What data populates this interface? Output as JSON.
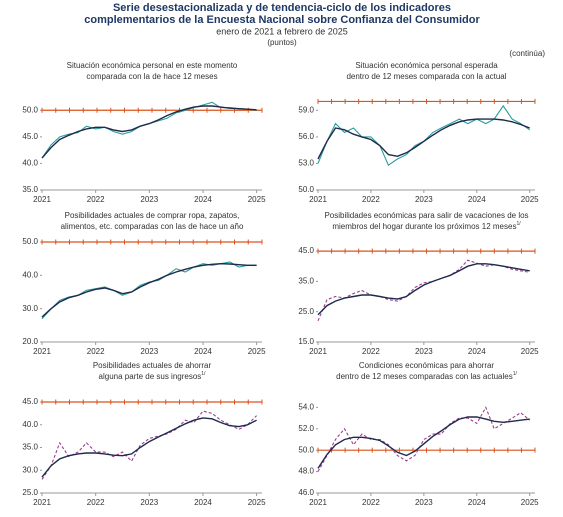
{
  "header": {
    "title_lines": [
      "Serie desestacionalizada y de tendencia-ciclo de los indicadores",
      "complementarios de la Encuesta Nacional sobre Confianza del Consumidor"
    ],
    "subtitle": "enero de 2021 a febrero de 2025",
    "units": "(puntos)",
    "continues": "(continúa)"
  },
  "chart_data": [
    {
      "type": "line",
      "title_lines": [
        "Situación económica personal en este momento",
        "comparada con la de hace 12 meses"
      ],
      "x": [
        2021,
        2021.17,
        2021.33,
        2021.5,
        2021.67,
        2021.83,
        2022,
        2022.17,
        2022.33,
        2022.5,
        2022.67,
        2022.83,
        2023,
        2023.17,
        2023.33,
        2023.5,
        2023.67,
        2023.83,
        2024,
        2024.17,
        2024.33,
        2024.5,
        2024.67,
        2024.83,
        2025
      ],
      "xlim": [
        2021,
        2025.1
      ],
      "xticks": [
        2021,
        2022,
        2023,
        2024,
        2025
      ],
      "ylim": [
        35,
        52.5
      ],
      "yticks": [
        {
          "value": 35,
          "label": "35.0"
        },
        {
          "value": 40,
          "label": "40.0"
        },
        {
          "value": 45,
          "label": "45.0"
        },
        {
          "value": 50,
          "label": "50.0"
        }
      ],
      "reference": 50,
      "reference_color": "#d9541e",
      "series": [
        {
          "color": "#2a9d9a",
          "dash": false,
          "values": [
            41,
            43.5,
            45,
            45.5,
            45.8,
            47,
            46.5,
            46.8,
            46,
            45.5,
            46,
            47,
            47.5,
            48,
            48.5,
            49.5,
            50,
            50.5,
            51,
            51.5,
            50.5,
            50.5,
            50.3,
            50.2,
            50
          ]
        },
        {
          "color": "#1f2a4d",
          "dash": false,
          "values": [
            41,
            43,
            44.5,
            45.3,
            46,
            46.5,
            46.8,
            46.8,
            46.3,
            46,
            46.3,
            47,
            47.5,
            48.2,
            49,
            49.7,
            50.2,
            50.6,
            50.8,
            50.8,
            50.6,
            50.4,
            50.3,
            50.2,
            50.1
          ]
        }
      ]
    },
    {
      "type": "line",
      "title_lines": [
        "Situación económica personal esperada",
        "dentro de 12 meses comparada con la actual"
      ],
      "x": [
        2021,
        2021.17,
        2021.33,
        2021.5,
        2021.67,
        2021.83,
        2022,
        2022.17,
        2022.33,
        2022.5,
        2022.67,
        2022.83,
        2023,
        2023.17,
        2023.33,
        2023.5,
        2023.67,
        2023.83,
        2024,
        2024.17,
        2024.33,
        2024.5,
        2024.67,
        2024.83,
        2025
      ],
      "xlim": [
        2021,
        2025.1
      ],
      "xticks": [
        2021,
        2022,
        2023,
        2024,
        2025
      ],
      "ylim": [
        50,
        60.5
      ],
      "yticks": [
        {
          "value": 50,
          "label": "50.0"
        },
        {
          "value": 53,
          "label": "53.0"
        },
        {
          "value": 56,
          "label": "56.0"
        },
        {
          "value": 59,
          "label": "59.0"
        }
      ],
      "reference": 60,
      "reference_color": "#d9541e",
      "series": [
        {
          "color": "#2a9d9a",
          "dash": false,
          "values": [
            53,
            55.5,
            57.5,
            56.5,
            57,
            56,
            56,
            55,
            52.8,
            53.5,
            54,
            55,
            55.5,
            56.5,
            57,
            57.5,
            58,
            57.5,
            58,
            57.5,
            58,
            59.5,
            58,
            57.5,
            56.8
          ]
        },
        {
          "color": "#1f2a4d",
          "dash": false,
          "values": [
            53.5,
            55.5,
            57,
            56.8,
            56.3,
            56,
            55.7,
            55,
            54,
            53.8,
            54.2,
            54.8,
            55.5,
            56.2,
            56.8,
            57.3,
            57.7,
            57.9,
            58,
            58,
            58,
            57.9,
            57.7,
            57.4,
            57
          ]
        }
      ]
    },
    {
      "type": "line",
      "title_lines": [
        "Posibilidades actuales de comprar ropa, zapatos,",
        "alimentos, etc. comparadas con las de hace un año"
      ],
      "x": [
        2021,
        2021.17,
        2021.33,
        2021.5,
        2021.67,
        2021.83,
        2022,
        2022.17,
        2022.33,
        2022.5,
        2022.67,
        2022.83,
        2023,
        2023.17,
        2023.33,
        2023.5,
        2023.67,
        2023.83,
        2024,
        2024.17,
        2024.33,
        2024.5,
        2024.67,
        2024.83,
        2025
      ],
      "xlim": [
        2021,
        2025.1
      ],
      "xticks": [
        2021,
        2022,
        2023,
        2024,
        2025
      ],
      "ylim": [
        20,
        50
      ],
      "yticks": [
        {
          "value": 20,
          "label": "20.0"
        },
        {
          "value": 30,
          "label": "30.0"
        },
        {
          "value": 40,
          "label": "40.0"
        },
        {
          "value": 50,
          "label": "50.0"
        }
      ],
      "reference": 50,
      "reference_color": "#d9541e",
      "series": [
        {
          "color": "#2a9d9a",
          "dash": false,
          "values": [
            27,
            30,
            32.5,
            33.5,
            34,
            35.5,
            36,
            36.5,
            35.5,
            34,
            35,
            37,
            38,
            38.5,
            40,
            42,
            41,
            42.5,
            43.5,
            43,
            43.5,
            44,
            42.5,
            43,
            43
          ]
        },
        {
          "color": "#1f2a4d",
          "dash": false,
          "values": [
            27.5,
            30,
            32,
            33.3,
            34,
            35,
            35.8,
            36.2,
            35.5,
            34.5,
            35,
            36.5,
            37.8,
            38.8,
            40,
            41,
            41.8,
            42.5,
            43,
            43.3,
            43.5,
            43.4,
            43.2,
            43,
            43
          ]
        }
      ]
    },
    {
      "type": "line",
      "title_lines": [
        "Posibilidades económicas para salir de vacaciones de los",
        "miembros del hogar durante los próximos 12 meses"
      ],
      "note": "1/",
      "x": [
        2021,
        2021.17,
        2021.33,
        2021.5,
        2021.67,
        2021.83,
        2022,
        2022.17,
        2022.33,
        2022.5,
        2022.67,
        2022.83,
        2023,
        2023.17,
        2023.33,
        2023.5,
        2023.67,
        2023.83,
        2024,
        2024.17,
        2024.33,
        2024.5,
        2024.67,
        2024.83,
        2025
      ],
      "xlim": [
        2021,
        2025.1
      ],
      "xticks": [
        2021,
        2022,
        2023,
        2024,
        2025
      ],
      "ylim": [
        15,
        48
      ],
      "yticks": [
        {
          "value": 15,
          "label": "15.0"
        },
        {
          "value": 25,
          "label": "25.0"
        },
        {
          "value": 35,
          "label": "35.0"
        },
        {
          "value": 45,
          "label": "45.0"
        }
      ],
      "reference": 45,
      "reference_color": "#d9541e",
      "series": [
        {
          "color": "#9b3d8f",
          "dash": true,
          "values": [
            22,
            29,
            30,
            29.5,
            31,
            32,
            30.5,
            30,
            29,
            28.5,
            30,
            33,
            34.5,
            35,
            36,
            37,
            39,
            42,
            41,
            40,
            40.5,
            40,
            39,
            38.5,
            38
          ]
        },
        {
          "color": "#1f2a4d",
          "dash": false,
          "values": [
            24,
            27,
            28.5,
            29.5,
            30,
            30.5,
            30.5,
            30,
            29.5,
            29.2,
            30,
            32,
            33.8,
            35,
            36,
            37,
            38.5,
            40,
            40.8,
            40.8,
            40.5,
            40,
            39.5,
            39,
            38.5
          ]
        }
      ]
    },
    {
      "type": "line",
      "title_lines": [
        "Posibilidades actuales de ahorrar",
        "alguna parte de sus ingresos"
      ],
      "note": "1/",
      "x": [
        2021,
        2021.17,
        2021.33,
        2021.5,
        2021.67,
        2021.83,
        2022,
        2022.17,
        2022.33,
        2022.5,
        2022.67,
        2022.83,
        2023,
        2023.17,
        2023.33,
        2023.5,
        2023.67,
        2023.83,
        2024,
        2024.17,
        2024.33,
        2024.5,
        2024.67,
        2024.83,
        2025
      ],
      "xlim": [
        2021,
        2025.1
      ],
      "xticks": [
        2021,
        2022,
        2023,
        2024,
        2025
      ],
      "ylim": [
        25,
        45
      ],
      "yticks": [
        {
          "value": 25,
          "label": "25.0"
        },
        {
          "value": 30,
          "label": "30.0"
        },
        {
          "value": 35,
          "label": "35.0"
        },
        {
          "value": 40,
          "label": "40.0"
        },
        {
          "value": 45,
          "label": "45.0"
        }
      ],
      "reference": 45,
      "reference_color": "#d9541e",
      "series": [
        {
          "color": "#9b3d8f",
          "dash": true,
          "values": [
            28,
            31,
            36,
            33,
            34,
            36,
            34,
            34,
            33,
            34,
            32,
            35.5,
            37,
            37.5,
            38,
            39,
            41,
            40.5,
            43,
            42.5,
            41,
            40,
            39,
            40,
            42
          ]
        },
        {
          "color": "#1f2a4d",
          "dash": false,
          "values": [
            28.5,
            31,
            32.5,
            33.2,
            33.6,
            33.8,
            33.8,
            33.6,
            33.3,
            33.2,
            33.6,
            35,
            36.3,
            37.3,
            38.2,
            39.2,
            40.2,
            41,
            41.5,
            41.3,
            40.5,
            39.8,
            39.6,
            40,
            41
          ]
        }
      ]
    },
    {
      "type": "line",
      "title_lines": [
        "Condiciones económicas para ahorrar",
        "dentro de 12 meses comparadas con las actuales"
      ],
      "note": "1/",
      "x": [
        2021,
        2021.17,
        2021.33,
        2021.5,
        2021.67,
        2021.83,
        2022,
        2022.17,
        2022.33,
        2022.5,
        2022.67,
        2022.83,
        2023,
        2023.17,
        2023.33,
        2023.5,
        2023.67,
        2023.83,
        2024,
        2024.17,
        2024.33,
        2024.5,
        2024.67,
        2024.83,
        2025
      ],
      "xlim": [
        2021,
        2025.1
      ],
      "xticks": [
        2021,
        2022,
        2023,
        2024,
        2025
      ],
      "ylim": [
        46,
        54.5
      ],
      "yticks": [
        {
          "value": 46,
          "label": "46.0"
        },
        {
          "value": 48,
          "label": "48.0"
        },
        {
          "value": 50,
          "label": "50.0"
        },
        {
          "value": 52,
          "label": "52.0"
        },
        {
          "value": 54,
          "label": "54.0"
        }
      ],
      "reference": 50,
      "reference_color": "#d9541e",
      "series": [
        {
          "color": "#9b3d8f",
          "dash": true,
          "values": [
            48,
            49.5,
            51,
            52,
            50.5,
            51.5,
            51,
            51,
            50.5,
            49.5,
            49,
            49.5,
            51,
            51.5,
            51.5,
            52.5,
            53,
            53,
            52.5,
            54,
            52,
            52.5,
            53,
            53.5,
            52.8
          ]
        },
        {
          "color": "#1f2a4d",
          "dash": false,
          "values": [
            48.3,
            49.6,
            50.5,
            51,
            51.2,
            51.2,
            51.1,
            50.9,
            50.4,
            49.8,
            49.5,
            49.9,
            50.6,
            51.3,
            51.8,
            52.4,
            52.9,
            53.1,
            53.1,
            52.9,
            52.7,
            52.6,
            52.7,
            52.8,
            52.9
          ]
        }
      ]
    }
  ]
}
